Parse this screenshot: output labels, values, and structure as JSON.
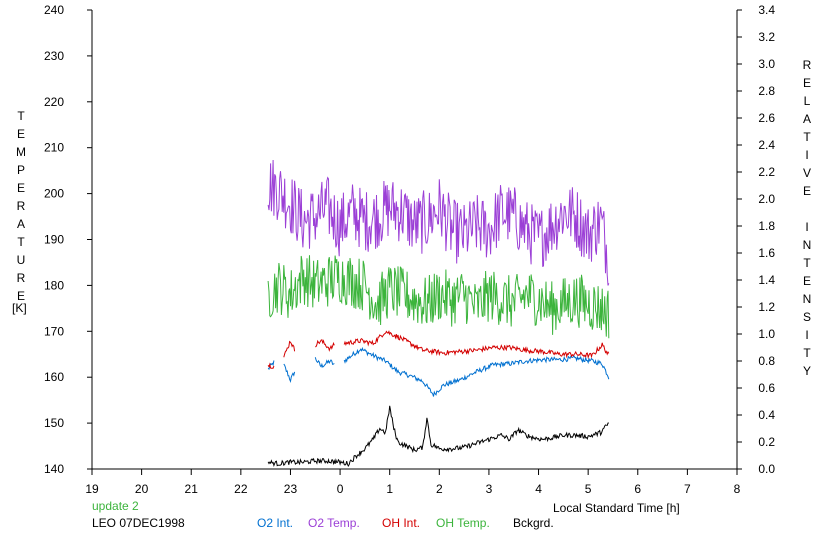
{
  "chart_data": {
    "type": "line",
    "title": "",
    "xlabel": "Local Standard Time [h]",
    "ylabel_left": "TEMPERATURE [K]",
    "ylabel_left_letters": [
      "T",
      "E",
      "M",
      "P",
      "E",
      "R",
      "A",
      "T",
      "U",
      "R",
      "E"
    ],
    "ylabel_left_unit": "[K]",
    "ylabel_right_letters": [
      "R",
      "E",
      "L",
      "A",
      "T",
      "I",
      "V",
      "E",
      "",
      "I",
      "N",
      "T",
      "E",
      "N",
      "S",
      "I",
      "T",
      "Y"
    ],
    "x_ticks": [
      "19",
      "20",
      "21",
      "22",
      "23",
      "0",
      "1",
      "2",
      "3",
      "4",
      "5",
      "6",
      "7",
      "8"
    ],
    "x_range_hours": [
      19,
      32
    ],
    "ylim_left": [
      140,
      240
    ],
    "y_ticks_left": [
      "140",
      "150",
      "160",
      "170",
      "180",
      "190",
      "200",
      "210",
      "220",
      "230",
      "240"
    ],
    "ylim_right": [
      0.0,
      3.4
    ],
    "y_ticks_right": [
      "0.0",
      "0.2",
      "0.4",
      "0.6",
      "0.8",
      "1.0",
      "1.2",
      "1.4",
      "1.6",
      "1.8",
      "2.0",
      "2.2",
      "2.4",
      "2.6",
      "2.8",
      "3.0",
      "3.2",
      "3.4"
    ],
    "grid": false,
    "legend_placement": "bottom",
    "series": [
      {
        "name": "O2 Int.",
        "color": "#0070d0",
        "axis": "right",
        "x": [
          "22:33",
          "22:40",
          "22:52",
          "23:00",
          "23:05",
          "23:30",
          "23:37",
          "23:48",
          "23:53",
          "0:05",
          "0:25",
          "0:40",
          "0:55",
          "1:10",
          "1:25",
          "1:40",
          "1:53",
          "2:05",
          "2:25",
          "2:45",
          "3:05",
          "3:25",
          "3:45",
          "4:05",
          "4:25",
          "4:45",
          "5:05",
          "5:17",
          "5:25"
        ],
        "values": [
          0.74,
          0.79,
          0.77,
          0.66,
          0.72,
          0.82,
          0.76,
          0.8,
          0.77,
          0.8,
          0.89,
          0.84,
          0.8,
          0.72,
          0.69,
          0.65,
          0.55,
          0.62,
          0.66,
          0.72,
          0.77,
          0.78,
          0.8,
          0.81,
          0.81,
          0.82,
          0.8,
          0.78,
          0.68
        ],
        "segments": [
          [
            0,
            1
          ],
          [
            2,
            4
          ],
          [
            5,
            8
          ],
          [
            9,
            28
          ]
        ]
      },
      {
        "name": "O2 Temp.",
        "color": "#9b3fd6",
        "axis": "left",
        "x": [
          "22:33",
          "22:45",
          "23:00",
          "23:15",
          "23:30",
          "23:45",
          "0:00",
          "0:15",
          "0:30",
          "0:45",
          "1:00",
          "1:15",
          "1:30",
          "1:45",
          "2:00",
          "2:15",
          "2:30",
          "2:45",
          "3:00",
          "3:15",
          "3:30",
          "3:45",
          "4:00",
          "4:15",
          "4:30",
          "4:45",
          "5:00",
          "5:15",
          "5:25"
        ],
        "values": [
          202,
          201,
          198,
          194,
          195,
          197,
          193,
          196,
          194,
          195,
          197,
          196,
          193,
          194,
          197,
          192,
          191,
          193,
          192,
          196,
          195,
          192,
          190,
          193,
          196,
          195,
          191,
          194,
          186
        ],
        "noise_amplitude": 7
      },
      {
        "name": "OH Int.",
        "color": "#d40000",
        "axis": "right",
        "x": [
          "22:33",
          "22:40",
          "22:52",
          "23:00",
          "23:05",
          "23:30",
          "23:37",
          "23:48",
          "23:53",
          "0:05",
          "0:25",
          "0:40",
          "0:55",
          "1:10",
          "1:25",
          "1:40",
          "1:53",
          "2:05",
          "2:25",
          "2:45",
          "3:05",
          "3:25",
          "3:45",
          "4:05",
          "4:25",
          "4:45",
          "5:05",
          "5:17",
          "5:25"
        ],
        "values": [
          0.77,
          0.76,
          0.83,
          0.95,
          0.88,
          0.92,
          0.95,
          0.89,
          0.92,
          0.93,
          0.95,
          0.93,
          1.02,
          0.98,
          0.93,
          0.88,
          0.87,
          0.86,
          0.87,
          0.88,
          0.9,
          0.9,
          0.88,
          0.87,
          0.85,
          0.85,
          0.84,
          0.92,
          0.84
        ],
        "segments": [
          [
            0,
            1
          ],
          [
            2,
            4
          ],
          [
            5,
            8
          ],
          [
            9,
            28
          ]
        ]
      },
      {
        "name": "OH Temp.",
        "color": "#3cb43c",
        "axis": "left",
        "x": [
          "22:33",
          "22:45",
          "23:00",
          "23:15",
          "23:30",
          "23:45",
          "0:00",
          "0:15",
          "0:30",
          "0:45",
          "1:00",
          "1:15",
          "1:30",
          "1:45",
          "2:00",
          "2:15",
          "2:30",
          "2:45",
          "3:00",
          "3:15",
          "3:30",
          "3:45",
          "4:00",
          "4:15",
          "4:30",
          "4:45",
          "5:00",
          "5:15",
          "5:25"
        ],
        "values": [
          178,
          180,
          178,
          182,
          180,
          181,
          182,
          181,
          180,
          176,
          179,
          178,
          177,
          176,
          178,
          177,
          178,
          175,
          178,
          177,
          176,
          178,
          177,
          175,
          176,
          177,
          176,
          175,
          174
        ],
        "noise_amplitude": 6
      },
      {
        "name": "Bckgrd.",
        "color": "#000000",
        "axis": "right",
        "x": [
          "22:33",
          "22:45",
          "23:00",
          "23:15",
          "23:30",
          "23:45",
          "0:00",
          "0:10",
          "0:20",
          "0:30",
          "0:40",
          "0:48",
          "0:55",
          "1:00",
          "1:05",
          "1:10",
          "1:20",
          "1:30",
          "1:40",
          "1:45",
          "1:50",
          "1:55",
          "2:00",
          "2:15",
          "2:30",
          "2:45",
          "3:00",
          "3:15",
          "3:25",
          "3:35",
          "3:45",
          "3:55",
          "4:05",
          "4:15",
          "4:30",
          "4:45",
          "5:00",
          "5:15",
          "5:25"
        ],
        "values": [
          0.05,
          0.04,
          0.05,
          0.05,
          0.06,
          0.06,
          0.05,
          0.04,
          0.1,
          0.15,
          0.22,
          0.3,
          0.27,
          0.46,
          0.3,
          0.2,
          0.17,
          0.14,
          0.16,
          0.38,
          0.18,
          0.17,
          0.15,
          0.15,
          0.16,
          0.19,
          0.22,
          0.25,
          0.22,
          0.29,
          0.25,
          0.23,
          0.22,
          0.23,
          0.25,
          0.25,
          0.24,
          0.27,
          0.34
        ]
      }
    ]
  },
  "footer": {
    "update": "update 2",
    "station": "LEO 07DEC1998",
    "legend": [
      "O2 Int.",
      "O2 Temp.",
      "OH Int.",
      "OH Temp.",
      "Bckgrd."
    ]
  },
  "colors": {
    "update": "#3cb43c",
    "axis": "#000000"
  }
}
